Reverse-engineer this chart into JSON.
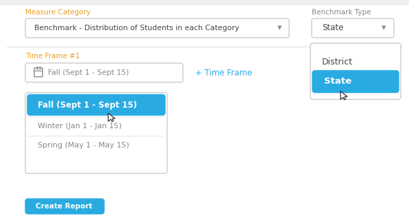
{
  "bg_color": "#f5f6f7",
  "panel_color": "#ffffff",
  "label_color_orange": "#e8a020",
  "text_color_dark": "#444444",
  "text_color_gray": "#888888",
  "blue_color": "#29abe2",
  "border_color": "#cccccc",
  "separator_color": "#e8e8e8",
  "measure_label": "Measure Category",
  "measure_value": "Benchmark - Distribution of Students in each Category",
  "benchmark_label": "Benchmark Type",
  "benchmark_value": "State",
  "timeframe_label": "Time Frame #1",
  "timeframe_value": "Fall (Sept 1 - Sept 15)",
  "add_timeframe": "+ Time Frame",
  "dropdown_items": [
    "Fall (Sept 1 - Sept 15)",
    "Winter (Jan 1 - Jan 15)",
    "Spring (May 1 - May 15)"
  ],
  "benchmark_items": [
    "District",
    "State"
  ]
}
